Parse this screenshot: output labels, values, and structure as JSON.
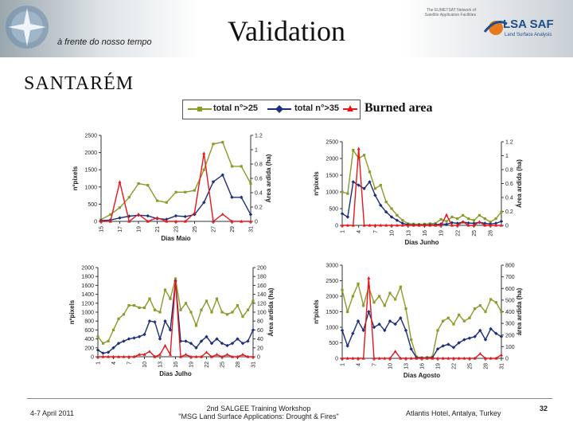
{
  "header": {
    "motto": "à frente do nosso tempo",
    "title": "Validation",
    "partner_note": "The EUMETSAT Network of Satellite Application Facilities",
    "partner_name": "LSA SAF",
    "partner_subtitle": "Land Surface Analysis"
  },
  "location": "SANTARÉM",
  "subtitle": "Burned area",
  "legend": {
    "entries": [
      "total n°>25",
      "total n°>35",
      "Burned area"
    ],
    "colors": [
      "#8c9a2a",
      "#1c2f7a",
      "#e8161b"
    ]
  },
  "chart_data": [
    {
      "type": "line",
      "name": "May",
      "xlabel": "Dias Maio",
      "ylabel": "nºpixels",
      "y2label": "Área ardida (ha)",
      "ylim": [
        0,
        2500
      ],
      "y2lim": [
        0,
        1.2
      ],
      "yticks": [
        "0",
        "500",
        "1000",
        "1500",
        "2000",
        "2500"
      ],
      "y2ticks": [
        "0",
        "0.2",
        "0.4",
        "0.6",
        "0.8",
        "1",
        "1.2"
      ],
      "xticks": [
        "15",
        "17",
        "19",
        "21",
        "23",
        "25",
        "27",
        "29",
        "31"
      ],
      "x": [
        15,
        16,
        17,
        18,
        19,
        20,
        21,
        22,
        23,
        24,
        25,
        26,
        27,
        28,
        29,
        30,
        31
      ],
      "series": [
        {
          "name": "total n°>25",
          "axis": "left",
          "color": "#8c9a2a",
          "values": [
            50,
            200,
            400,
            700,
            1100,
            1050,
            600,
            550,
            850,
            850,
            900,
            1500,
            2250,
            2300,
            1600,
            1600,
            1100
          ]
        },
        {
          "name": "total n°>35",
          "axis": "left",
          "color": "#1c2f7a",
          "values": [
            20,
            40,
            100,
            150,
            180,
            160,
            80,
            60,
            160,
            140,
            200,
            550,
            1150,
            1350,
            700,
            700,
            200
          ]
        },
        {
          "name": "Burned area",
          "axis": "right",
          "color": "#e8161b",
          "values": [
            0,
            0,
            0.55,
            0,
            0.1,
            0,
            0.05,
            0,
            0,
            0,
            0.12,
            0.95,
            0,
            0.1,
            0,
            0,
            0
          ]
        }
      ]
    },
    {
      "type": "line",
      "name": "June",
      "xlabel": "Dias Junho",
      "ylabel": "nºpixels",
      "y2label": "Área ardida (ha)",
      "ylim": [
        0,
        2500
      ],
      "y2lim": [
        0,
        1.2
      ],
      "yticks": [
        "0",
        "500",
        "1000",
        "1500",
        "2000",
        "2500"
      ],
      "y2ticks": [
        "0",
        "0.2",
        "0.4",
        "0.6",
        "0.8",
        "1",
        "1.2"
      ],
      "xticks": [
        "1",
        "4",
        "7",
        "10",
        "13",
        "16",
        "19",
        "22",
        "25",
        "28"
      ],
      "x": [
        1,
        2,
        3,
        4,
        5,
        6,
        7,
        8,
        9,
        10,
        11,
        12,
        13,
        14,
        15,
        16,
        17,
        18,
        19,
        20,
        21,
        22,
        23,
        24,
        25,
        26,
        27,
        28,
        29,
        30
      ],
      "series": [
        {
          "name": "total n°>25",
          "axis": "left",
          "color": "#8c9a2a",
          "values": [
            1000,
            950,
            2250,
            2000,
            2100,
            1600,
            1100,
            1200,
            700,
            500,
            300,
            150,
            50,
            40,
            30,
            40,
            50,
            60,
            180,
            120,
            250,
            200,
            300,
            200,
            150,
            300,
            200,
            100,
            200,
            400
          ]
        },
        {
          "name": "total n°>35",
          "axis": "left",
          "color": "#1c2f7a",
          "values": [
            350,
            250,
            1300,
            1200,
            1100,
            1300,
            900,
            600,
            400,
            250,
            150,
            60,
            20,
            10,
            10,
            10,
            15,
            20,
            40,
            30,
            80,
            60,
            100,
            70,
            60,
            90,
            60,
            40,
            60,
            120
          ]
        },
        {
          "name": "Burned area",
          "axis": "right",
          "color": "#e8161b",
          "values": [
            0,
            0,
            0,
            1.1,
            0,
            0,
            0,
            0,
            0,
            0,
            0,
            0,
            0,
            0,
            0,
            0,
            0,
            0,
            0,
            0.15,
            0,
            0,
            0.05,
            0,
            0,
            0.05,
            0,
            0,
            0,
            0
          ]
        }
      ]
    },
    {
      "type": "line",
      "name": "July",
      "xlabel": "Dias Julho",
      "ylabel": "nºpixels",
      "y2label": "Área ardida (ha)",
      "ylim": [
        0,
        2000
      ],
      "y2lim": [
        0,
        200
      ],
      "yticks": [
        "0",
        "200",
        "400",
        "600",
        "800",
        "1000",
        "1200",
        "1400",
        "1600",
        "1800",
        "2000"
      ],
      "y2ticks": [
        "0",
        "20",
        "40",
        "60",
        "80",
        "100",
        "120",
        "140",
        "160",
        "180",
        "200"
      ],
      "xticks": [
        "1",
        "4",
        "7",
        "10",
        "13",
        "16",
        "19",
        "22",
        "25",
        "28",
        "31"
      ],
      "x": [
        1,
        2,
        3,
        4,
        5,
        6,
        7,
        8,
        9,
        10,
        11,
        12,
        13,
        14,
        15,
        16,
        17,
        18,
        19,
        20,
        21,
        22,
        23,
        24,
        25,
        26,
        27,
        28,
        29,
        30,
        31
      ],
      "series": [
        {
          "name": "total n°>25",
          "axis": "left",
          "color": "#8c9a2a",
          "values": [
            450,
            300,
            350,
            600,
            850,
            950,
            1150,
            1150,
            1100,
            1100,
            1300,
            1050,
            1000,
            1500,
            1300,
            1750,
            1050,
            1200,
            1000,
            700,
            1050,
            1250,
            1000,
            1300,
            1000,
            950,
            1000,
            1150,
            900,
            1050,
            1250
          ]
        },
        {
          "name": "total n°>35",
          "axis": "left",
          "color": "#1c2f7a",
          "values": [
            150,
            80,
            100,
            200,
            300,
            350,
            400,
            420,
            450,
            500,
            800,
            780,
            400,
            800,
            600,
            1700,
            350,
            350,
            300,
            200,
            350,
            450,
            300,
            400,
            300,
            250,
            300,
            400,
            300,
            350,
            600
          ]
        },
        {
          "name": "Burned area",
          "axis": "right",
          "color": "#e8161b",
          "values": [
            0,
            0,
            0,
            0,
            0,
            0,
            0,
            0,
            5,
            5,
            12,
            0,
            5,
            25,
            5,
            170,
            0,
            5,
            0,
            0,
            0,
            10,
            0,
            5,
            0,
            5,
            0,
            0,
            5,
            0,
            0
          ]
        }
      ]
    },
    {
      "type": "line",
      "name": "August",
      "xlabel": "Dias Agosto",
      "ylabel": "nºpixels",
      "y2label": "área ardida (ha)",
      "ylim": [
        0,
        3000
      ],
      "y2lim": [
        0,
        800
      ],
      "yticks": [
        "0",
        "500",
        "1000",
        "1500",
        "2000",
        "2500",
        "3000"
      ],
      "y2ticks": [
        "0",
        "100",
        "200",
        "300",
        "400",
        "500",
        "600",
        "700",
        "800"
      ],
      "xticks": [
        "1",
        "4",
        "7",
        "10",
        "13",
        "16",
        "19",
        "22",
        "25",
        "28",
        "31"
      ],
      "x": [
        1,
        2,
        3,
        4,
        5,
        6,
        7,
        8,
        9,
        10,
        11,
        12,
        13,
        14,
        15,
        16,
        17,
        18,
        19,
        20,
        21,
        22,
        23,
        24,
        25,
        26,
        27,
        28,
        29,
        30,
        31
      ],
      "series": [
        {
          "name": "total n°>25",
          "axis": "left",
          "color": "#8c9a2a",
          "values": [
            2200,
            1500,
            2000,
            2400,
            1700,
            2300,
            1800,
            2000,
            1700,
            2100,
            1900,
            2300,
            1600,
            600,
            50,
            20,
            30,
            50,
            900,
            1200,
            1300,
            1100,
            1400,
            1200,
            1300,
            1600,
            1700,
            1500,
            1900,
            1800,
            1500
          ]
        },
        {
          "name": "total n°>35",
          "axis": "left",
          "color": "#1c2f7a",
          "values": [
            900,
            400,
            800,
            1200,
            900,
            1500,
            1000,
            1100,
            900,
            1200,
            1100,
            1300,
            900,
            300,
            20,
            10,
            10,
            20,
            300,
            400,
            450,
            350,
            500,
            600,
            650,
            700,
            900,
            600,
            950,
            800,
            700
          ]
        },
        {
          "name": "Burned area",
          "axis": "right",
          "color": "#e8161b",
          "values": [
            0,
            0,
            0,
            0,
            0,
            690,
            0,
            0,
            0,
            0,
            60,
            0,
            0,
            0,
            0,
            0,
            0,
            0,
            0,
            0,
            0,
            0,
            0,
            0,
            0,
            0,
            40,
            0,
            0,
            0,
            30
          ]
        }
      ]
    }
  ],
  "footer": {
    "date": "4-7 April 2011",
    "workshop_line1": "2nd SALGEE Training Workshop",
    "workshop_line2": "\"MSG Land Surface Applications: Drought & Fires\"",
    "venue": "Atlantis Hotel, Antalya, Turkey",
    "page": "32"
  }
}
